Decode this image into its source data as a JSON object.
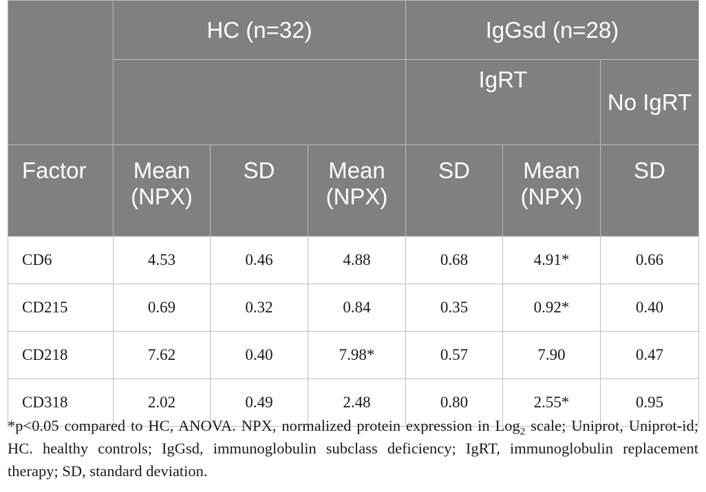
{
  "header": {
    "group_hc": "HC (n=32)",
    "group_igg": "IgGsd (n=28)",
    "sub_igrt": "IgRT",
    "sub_no_igrt": "No IgRT",
    "col_factor": "Factor",
    "col_mean": "Mean (NPX)",
    "col_sd": "SD"
  },
  "rows": [
    {
      "factor": "CD6",
      "values": [
        "4.53",
        "0.46",
        "4.88",
        "0.68",
        "4.91*",
        "0.66"
      ]
    },
    {
      "factor": "CD215",
      "values": [
        "0.69",
        "0.32",
        "0.84",
        "0.35",
        "0.92*",
        "0.40"
      ]
    },
    {
      "factor": "CD218",
      "values": [
        "7.62",
        "0.40",
        "7.98*",
        "0.57",
        "7.90",
        "0.47"
      ]
    },
    {
      "factor": "CD318",
      "values": [
        "2.02",
        "0.49",
        "2.48",
        "0.80",
        "2.55*",
        "0.95"
      ]
    }
  ],
  "footnote": {
    "part1": "*p<0.05 compared to HC, ANOVA. NPX, normalized protein expression in Log",
    "subscript": "2",
    "part2": " scale; Uniprot, Uniprot-id; HC. healthy controls; IgGsd, immunoglobulin subclass deficiency; IgRT, immunoglobulin replacement therapy; SD, standard deviation."
  },
  "colors": {
    "header_bg": "#808080",
    "header_text": "#ffffff",
    "border": "#bdbdbd",
    "body_text": "#1a1a1a"
  }
}
